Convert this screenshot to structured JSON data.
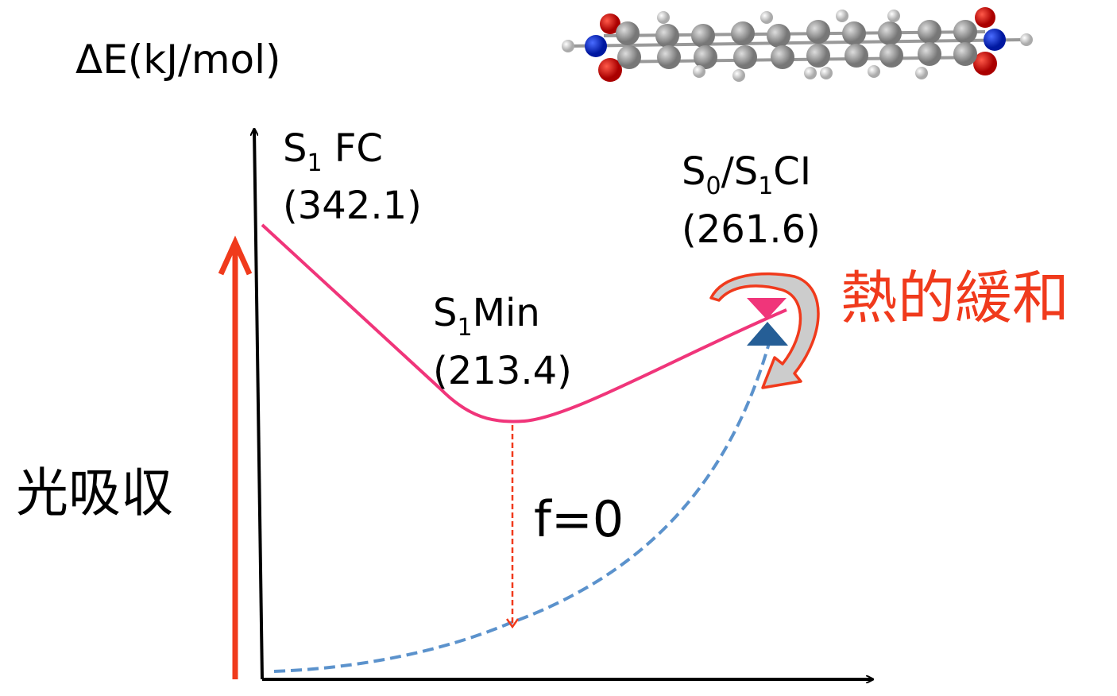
{
  "axis_label": "ΔE(kJ/mol)",
  "points": [
    {
      "name": [
        {
          "text": "S"
        },
        {
          "sub": "1"
        },
        {
          "text": " FC"
        }
      ],
      "energy": "(342.1)"
    },
    {
      "name": [
        {
          "text": "S"
        },
        {
          "sub": "1"
        },
        {
          "text": "Min"
        }
      ],
      "energy": "(213.4)"
    },
    {
      "name": [
        {
          "text": "S"
        },
        {
          "sub": "0"
        },
        {
          "text": "/S"
        },
        {
          "sub": "1"
        },
        {
          "text": "CI"
        }
      ],
      "energy": "(261.6)"
    }
  ],
  "relaxation": "熱的緩和",
  "absorption": "光吸収",
  "oscillator": "f=0"
}
